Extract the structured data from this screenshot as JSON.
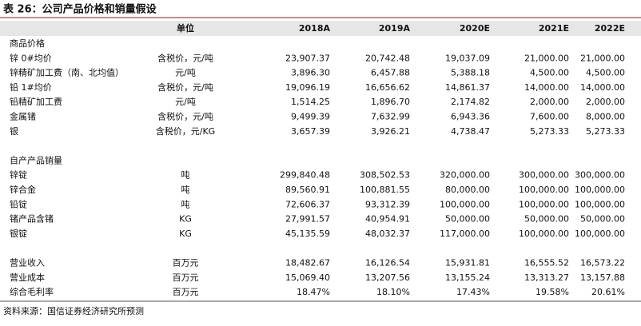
{
  "title": "表 26：公司产品价格和销量假设",
  "header": {
    "columns": [
      "单位",
      "2018A",
      "2019A",
      "2020E",
      "2021E",
      "2022E"
    ]
  },
  "sections": [
    {
      "label": "商品价格",
      "rows": [
        {
          "label": "锌 0#均价",
          "unit": "含税价，元/吨",
          "values": [
            "23,907.37",
            "20,742.48",
            "19,037.09",
            "21,000.00",
            "21,000.00"
          ]
        },
        {
          "label": "锌精矿加工费（南、北均值）",
          "unit": "元/吨",
          "values": [
            "3,896.30",
            "6,457.88",
            "5,388.18",
            "4,500.00",
            "4,500.00"
          ]
        },
        {
          "label": "铅 1#均价",
          "unit": "含税价，元/吨",
          "values": [
            "19,096.19",
            "16,656.62",
            "14,861.37",
            "14,000.00",
            "14,000.00"
          ]
        },
        {
          "label": "铅精矿加工费",
          "unit": "元/吨",
          "values": [
            "1,514.25",
            "1,896.70",
            "2,174.82",
            "2,000.00",
            "2,000.00"
          ]
        },
        {
          "label": "金属锗",
          "unit": "含税价，元/吨",
          "values": [
            "9,499.39",
            "7,632.99",
            "6,943.36",
            "7,600.00",
            "8,000.00"
          ]
        },
        {
          "label": "银",
          "unit": "含税价，元/KG",
          "values": [
            "3,657.39",
            "3,926.21",
            "4,738.47",
            "5,273.33",
            "5,273.33"
          ]
        }
      ]
    },
    {
      "label": "自产产品销量",
      "rows": [
        {
          "label": "锌锭",
          "unit": "吨",
          "values": [
            "299,840.48",
            "308,502.53",
            "320,000.00",
            "300,000.00",
            "300,000.00"
          ]
        },
        {
          "label": "锌合金",
          "unit": "吨",
          "values": [
            "89,560.91",
            "100,881.55",
            "80,000.00",
            "100,000.00",
            "100,000.00"
          ]
        },
        {
          "label": "铅锭",
          "unit": "吨",
          "values": [
            "72,606.37",
            "93,312.39",
            "100,000.00",
            "100,000.00",
            "100,000.00"
          ]
        },
        {
          "label": "锗产品含锗",
          "unit": "KG",
          "values": [
            "27,991.57",
            "40,954.91",
            "50,000.00",
            "50,000.00",
            "50,000.00"
          ]
        },
        {
          "label": "银锭",
          "unit": "KG",
          "values": [
            "45,135.59",
            "48,032.37",
            "117,000.00",
            "100,000.00",
            "100,000.00"
          ]
        }
      ]
    },
    {
      "rows": [
        {
          "label": "营业收入",
          "unit": "百万元",
          "values": [
            "18,482.67",
            "16,126.54",
            "15,931.81",
            "16,555.52",
            "16,573.22"
          ]
        },
        {
          "label": "营业成本",
          "unit": "百万元",
          "values": [
            "15,069.40",
            "13,207.56",
            "13,155.24",
            "13,313.27",
            "13,157.88"
          ]
        },
        {
          "label": "综合毛利率",
          "unit": "百万元",
          "values": [
            "18.47%",
            "18.10%",
            "17.43%",
            "19.58%",
            "20.61%"
          ]
        }
      ]
    }
  ],
  "source": "资料来源：国信证券经济研究所预测"
}
